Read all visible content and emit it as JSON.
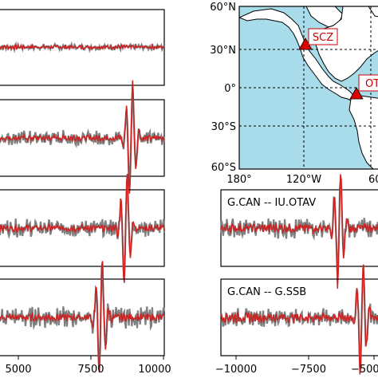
{
  "chart_data": [
    {
      "type": "line",
      "panel": "left-1",
      "title": "",
      "series": [
        {
          "name": "",
          "color": "#808080",
          "amplitude": 0.1,
          "pulse_center": null
        },
        {
          "name": "",
          "color": "#cc2222",
          "amplitude": 0.08,
          "pulse_center": null
        }
      ],
      "xlim": [
        4000,
        10000
      ]
    },
    {
      "type": "line",
      "panel": "left-2",
      "title": "",
      "series": [
        {
          "name": "",
          "color": "#808080",
          "amplitude": 0.25,
          "pulse_center": 8800
        },
        {
          "name": "",
          "color": "#cc2222",
          "amplitude": 0.12,
          "pulse_center": 8800
        }
      ],
      "xlim": [
        4000,
        10000
      ]
    },
    {
      "type": "line",
      "panel": "left-3",
      "title": "",
      "series": [
        {
          "name": "",
          "color": "#808080",
          "amplitude": 0.3,
          "pulse_center": 8600
        },
        {
          "name": "",
          "color": "#cc2222",
          "amplitude": 0.15,
          "pulse_center": 8600
        }
      ],
      "xlim": [
        4000,
        10000
      ]
    },
    {
      "type": "line",
      "panel": "left-4",
      "title": "",
      "series": [
        {
          "name": "",
          "color": "#808080",
          "amplitude": 0.35,
          "pulse_center": 7700
        },
        {
          "name": "",
          "color": "#cc2222",
          "amplitude": 0.15,
          "pulse_center": 7700
        }
      ],
      "xlim": [
        4000,
        10000
      ],
      "xticks": [
        5000,
        7500,
        10000
      ],
      "xtick_labels": [
        "5000",
        "7500",
        "10000"
      ]
    },
    {
      "type": "line",
      "panel": "right-1",
      "title": "G.CAN -- IU.OTAV",
      "series": [
        {
          "name": "",
          "color": "#808080",
          "amplitude": 0.35,
          "pulse_center": -6300
        },
        {
          "name": "",
          "color": "#cc2222",
          "amplitude": 0.2,
          "pulse_center": -6300
        }
      ],
      "xlim": [
        -11000,
        -4500
      ]
    },
    {
      "type": "line",
      "panel": "right-2",
      "title": "G.CAN -- G.SSB",
      "series": [
        {
          "name": "",
          "color": "#808080",
          "amplitude": 0.3,
          "pulse_center": -5400
        },
        {
          "name": "",
          "color": "#cc2222",
          "amplitude": 0.2,
          "pulse_center": -5400
        }
      ],
      "xlim": [
        -11000,
        -4500
      ],
      "xticks": [
        -10000,
        -7500,
        -5000
      ],
      "xtick_labels": [
        "−10000",
        "−7500",
        "−5000"
      ]
    }
  ],
  "map": {
    "ocean_color": "#a8dcea",
    "land_color": "#ffffff",
    "yticks": [
      "60°N",
      "30°N",
      "0°",
      "30°S",
      "60°S"
    ],
    "xticks": [
      "180°",
      "120°W",
      "60"
    ],
    "stations": [
      {
        "label": "SCZ",
        "lon": -121,
        "lat": 36
      },
      {
        "label": "OT",
        "lon": -78,
        "lat": 0
      }
    ]
  }
}
